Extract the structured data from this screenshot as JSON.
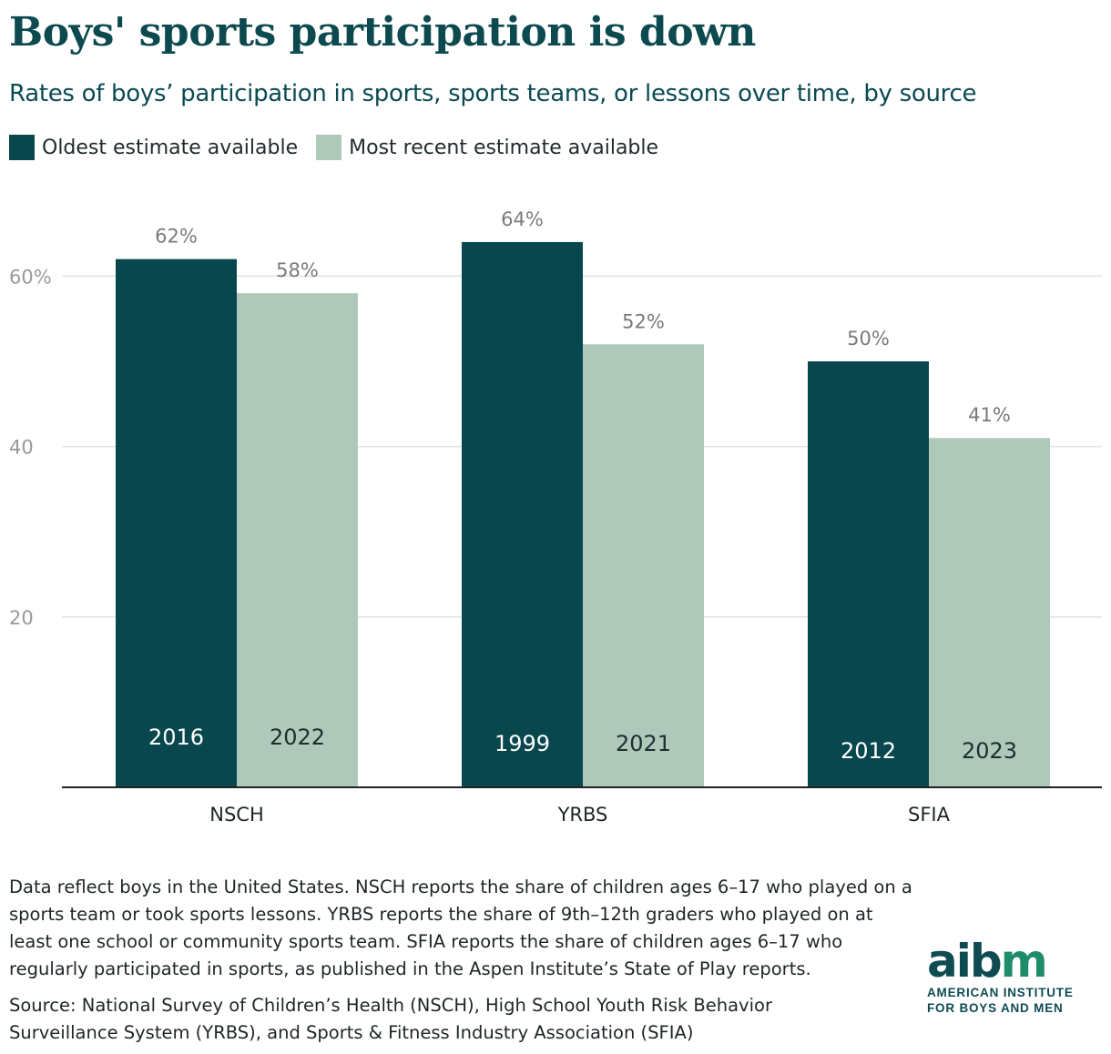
{
  "header": {
    "title": "Boys' sports participation is down",
    "subtitle": "Rates of boys’ participation in sports, sports teams, or lessons over time, by source"
  },
  "legend": {
    "oldest_label": "Oldest estimate available",
    "recent_label": "Most recent estimate available"
  },
  "colors": {
    "oldest": "#08474e",
    "recent": "#aec9ba",
    "value_label": "#7a7a7a",
    "axis_label": "#9a9a9a",
    "grid": "#e2e2e2"
  },
  "chart_data": {
    "type": "bar",
    "title": "Boys' sports participation is down",
    "categories": [
      "NSCH",
      "YRBS",
      "SFIA"
    ],
    "series": [
      {
        "name": "Oldest estimate available",
        "values": [
          62,
          64,
          50
        ],
        "years": [
          "2016",
          "1999",
          "2012"
        ],
        "labels": [
          "62%",
          "64%",
          "50%"
        ]
      },
      {
        "name": "Most recent estimate available",
        "values": [
          58,
          52,
          41
        ],
        "years": [
          "2022",
          "2021",
          "2023"
        ],
        "labels": [
          "58%",
          "52%",
          "41%"
        ]
      }
    ],
    "yticks": [
      {
        "value": 20,
        "label": "20"
      },
      {
        "value": 40,
        "label": "40"
      },
      {
        "value": 60,
        "label": "60%"
      }
    ],
    "ylim": [
      0,
      70
    ],
    "xlabel": "",
    "ylabel": "",
    "grid": true,
    "legend_position": "top-left"
  },
  "footnote": "Data reflect boys in the United States. NSCH reports the share of children ages 6–17 who played on a sports team or took sports lessons. YRBS reports the share of 9th–12th graders who played on at least one school or community sports team. SFIA reports the share of children ages 6–17 who regularly participated in sports, as published in the Aspen Institute’s State of Play reports.",
  "source": "Source: National Survey of Children’s Health (NSCH), High School Youth Risk Behavior Surveillance System (YRBS), and Sports & Fitness Industry Association (SFIA)",
  "logo": {
    "mark_main": "aib",
    "mark_accent": "m",
    "line1": "AMERICAN INSTITUTE",
    "line2": "FOR BOYS AND MEN"
  }
}
